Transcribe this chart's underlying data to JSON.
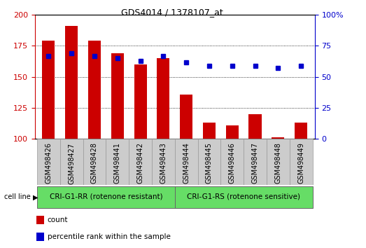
{
  "title": "GDS4014 / 1378107_at",
  "categories": [
    "GSM498426",
    "GSM498427",
    "GSM498428",
    "GSM498441",
    "GSM498442",
    "GSM498443",
    "GSM498444",
    "GSM498445",
    "GSM498446",
    "GSM498447",
    "GSM498448",
    "GSM498449"
  ],
  "bar_values": [
    179,
    191,
    179,
    169,
    160,
    165,
    136,
    113,
    111,
    120,
    101,
    113
  ],
  "dot_values": [
    67,
    69,
    67,
    65,
    63,
    67,
    62,
    59,
    59,
    59,
    57,
    59
  ],
  "bar_color": "#cc0000",
  "dot_color": "#0000cc",
  "ymin": 100,
  "ymax": 200,
  "yticks": [
    100,
    125,
    150,
    175,
    200
  ],
  "y2min": 0,
  "y2max": 100,
  "y2ticks": [
    0,
    25,
    50,
    75,
    100
  ],
  "group1_label": "CRI-G1-RR (rotenone resistant)",
  "group2_label": "CRI-G1-RS (rotenone sensitive)",
  "group1_count": 6,
  "group2_count": 6,
  "group_bg_color": "#66dd66",
  "cell_line_label": "cell line",
  "legend_count_label": "count",
  "legend_pct_label": "percentile rank within the sample",
  "left_axis_color": "#cc0000",
  "right_axis_color": "#0000cc",
  "tick_label_bg": "#cccccc",
  "tick_label_border": "#999999",
  "grid_color": "#000000",
  "plot_bg": "#ffffff",
  "border_color": "#000000",
  "fig_bg": "#ffffff",
  "title_fontsize": 9,
  "axis_fontsize": 8,
  "tick_fontsize": 7,
  "group_fontsize": 7.5,
  "legend_fontsize": 7.5
}
